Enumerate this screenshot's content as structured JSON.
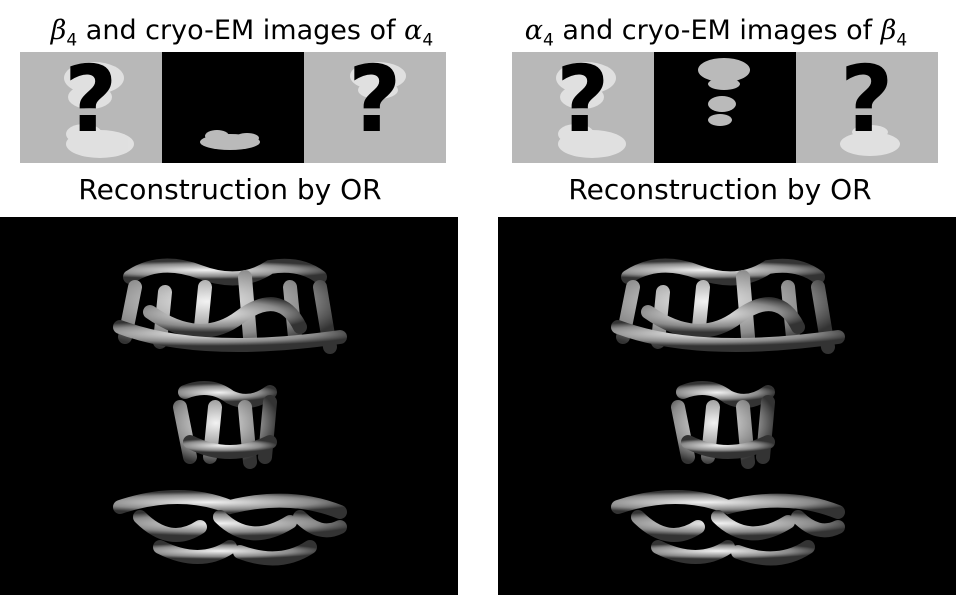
{
  "left": {
    "title_prefix": "β",
    "title_prefix_sub": "4",
    "title_middle": " and cryo-EM images of ",
    "title_suffix": "α",
    "title_suffix_sub": "4",
    "caption": "Reconstruction by OR"
  },
  "right": {
    "title_prefix": "α",
    "title_prefix_sub": "4",
    "title_middle": " and cryo-EM images of ",
    "title_suffix": "β",
    "title_suffix_sub": "4",
    "caption": "Reconstruction by OR"
  },
  "glyphs": {
    "question_mark": "?"
  },
  "colors": {
    "panel_gray": "#b8b8b8",
    "panel_black": "#000000",
    "density": "#d9d9d9"
  }
}
